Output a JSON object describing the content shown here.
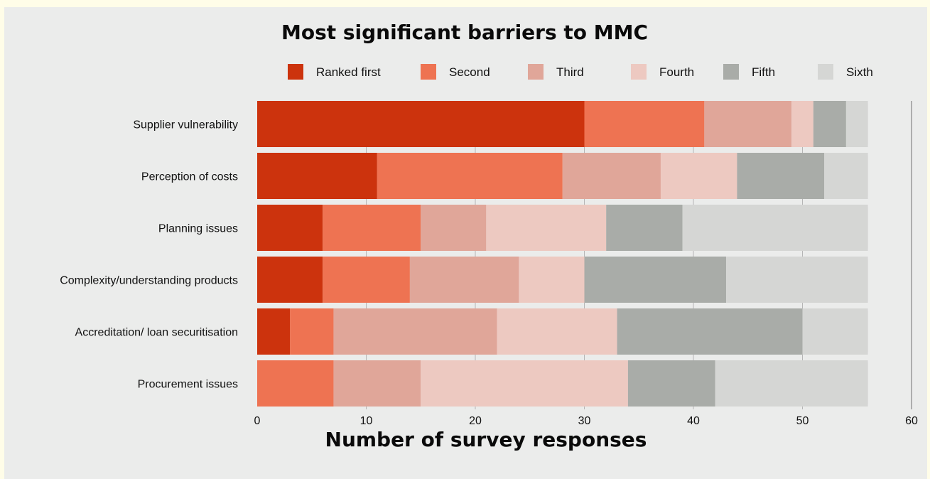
{
  "chart_data": {
    "type": "bar",
    "orientation": "horizontal",
    "stacked": true,
    "title": "Most significant barriers to MMC",
    "xlabel": "Number of survey responses",
    "ylabel": "",
    "xlim": [
      0,
      60
    ],
    "xticks": [
      0,
      10,
      20,
      30,
      40,
      50,
      60
    ],
    "grid": true,
    "legend_position": "top",
    "categories": [
      "Supplier vulnerability",
      "Perception of costs",
      "Planning issues",
      "Complexity/understanding products",
      "Accreditation/ loan securitisation",
      "Procurement issues"
    ],
    "series": [
      {
        "name": "Ranked first",
        "color": "#cc330d",
        "values": [
          30,
          11,
          6,
          6,
          3,
          0
        ]
      },
      {
        "name": "Second",
        "color": "#ee7352",
        "values": [
          11,
          17,
          9,
          8,
          4,
          7
        ]
      },
      {
        "name": "Third",
        "color": "#e0a699",
        "values": [
          8,
          9,
          6,
          10,
          15,
          8
        ]
      },
      {
        "name": "Fourth",
        "color": "#edc9c1",
        "values": [
          2,
          7,
          11,
          6,
          11,
          19
        ]
      },
      {
        "name": "Fifth",
        "color": "#a9aca8",
        "values": [
          3,
          8,
          7,
          13,
          17,
          8
        ]
      },
      {
        "name": "Sixth",
        "color": "#d5d6d4",
        "values": [
          2,
          4,
          17,
          13,
          6,
          14
        ]
      }
    ]
  }
}
